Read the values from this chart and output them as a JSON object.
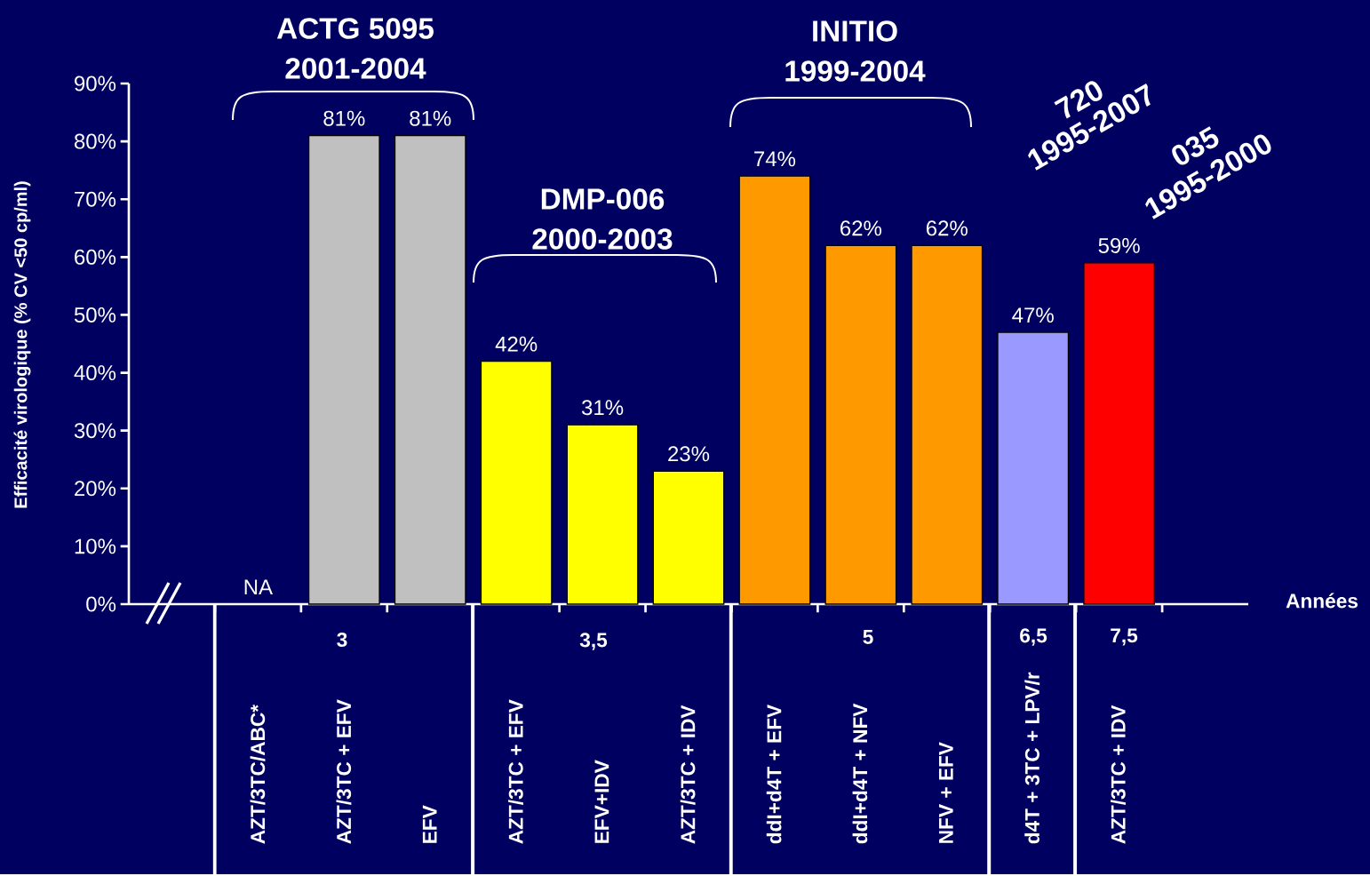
{
  "chart_data": {
    "type": "bar",
    "ylabel": "Efficacité virologique (% CV <50 cp/ml)",
    "categories": [
      "AZT/3TC/ABC*",
      "AZT/3TC + EFV",
      "EFV",
      "AZT/3TC + EFV",
      "EFV+IDV",
      "AZT/3TC + IDV",
      "ddI+d4T + EFV",
      "ddI+d4T + NFV",
      "NFV + EFV",
      "d4T + 3TC + LPV/r",
      "AZT/3TC + IDV"
    ],
    "values": [
      null,
      81,
      81,
      42,
      31,
      23,
      74,
      62,
      62,
      47,
      59
    ],
    "value_labels": [
      "NA",
      "81%",
      "81%",
      "42%",
      "31%",
      "23%",
      "74%",
      "62%",
      "62%",
      "47%",
      "59%"
    ],
    "colors": [
      "#c0c0c0",
      "#c0c0c0",
      "#c0c0c0",
      "#ffff00",
      "#ffff00",
      "#ffff00",
      "#ff9900",
      "#ff9900",
      "#ff9900",
      "#9999ff",
      "#ff0000"
    ],
    "ylim": [
      0,
      90
    ],
    "yticks": [
      {
        "value": 0,
        "label": "0%"
      },
      {
        "value": 10,
        "label": "10%"
      },
      {
        "value": 20,
        "label": "20%"
      },
      {
        "value": 30,
        "label": "30%"
      },
      {
        "value": 40,
        "label": "40%"
      },
      {
        "value": 50,
        "label": "50%"
      },
      {
        "value": 60,
        "label": "60%"
      },
      {
        "value": 70,
        "label": "70%"
      },
      {
        "value": 80,
        "label": "80%"
      },
      {
        "value": 90,
        "label": "90%"
      }
    ],
    "annotations": [
      "ACTG 5095",
      "2001-2004",
      "DMP-006",
      "2000-2003",
      "INITIO",
      "1999-2004",
      "720",
      "1995-2007",
      "035",
      "1995-2000",
      "3",
      "3,5",
      "5",
      "6,5",
      "7,5",
      "Années"
    ]
  }
}
